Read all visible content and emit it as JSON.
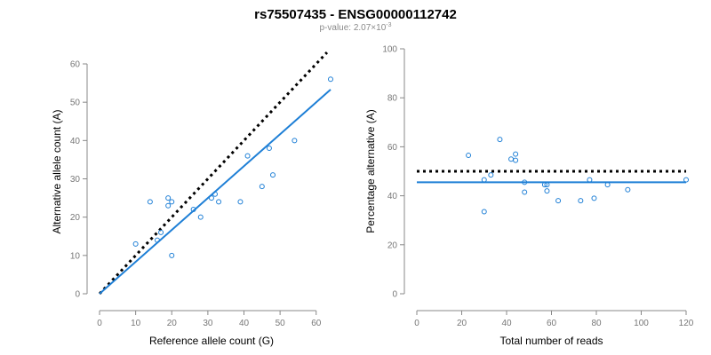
{
  "header": {
    "title": "rs75507435 - ENSG00000112742",
    "subtitle_prefix": "p-value: 2.07×10",
    "subtitle_exp": "-3"
  },
  "colors": {
    "points": "#1e7fd6",
    "fit": "#1e7fd6",
    "reference": "#000000",
    "axis": "#888888"
  },
  "chart_data": [
    {
      "type": "scatter",
      "xlabel": "Reference allele count (G)",
      "ylabel": "Alternative allele count (A)",
      "xlim": [
        0,
        64
      ],
      "ylim": [
        0,
        60
      ],
      "xticks": [
        0,
        10,
        20,
        30,
        40,
        50,
        60
      ],
      "yticks": [
        0,
        10,
        20,
        30,
        40,
        50,
        60
      ],
      "grid": false,
      "points": [
        [
          10,
          13
        ],
        [
          14,
          24
        ],
        [
          16,
          14
        ],
        [
          17,
          16
        ],
        [
          19,
          25
        ],
        [
          19,
          23
        ],
        [
          20,
          24
        ],
        [
          20,
          10
        ],
        [
          26,
          22
        ],
        [
          28,
          20
        ],
        [
          31,
          25
        ],
        [
          32,
          26
        ],
        [
          33,
          24
        ],
        [
          39,
          24
        ],
        [
          41,
          36
        ],
        [
          45,
          28
        ],
        [
          47,
          38
        ],
        [
          48,
          31
        ],
        [
          54,
          40
        ],
        [
          64,
          56
        ]
      ],
      "fit_line": [
        [
          0,
          0
        ],
        [
          64,
          53.3
        ]
      ],
      "reference_line": [
        [
          0,
          0
        ],
        [
          63,
          63
        ]
      ]
    },
    {
      "type": "scatter",
      "xlabel": "Total number of reads",
      "ylabel": "Percentage alternative (A)",
      "xlim": [
        0,
        120
      ],
      "ylim": [
        0,
        100
      ],
      "xticks": [
        0,
        20,
        40,
        60,
        80,
        100,
        120
      ],
      "yticks": [
        0,
        20,
        40,
        60,
        80,
        100
      ],
      "grid": false,
      "points": [
        [
          23,
          56.5
        ],
        [
          30,
          46.5
        ],
        [
          30,
          33.5
        ],
        [
          33,
          48.5
        ],
        [
          37,
          63
        ],
        [
          42,
          55
        ],
        [
          44,
          57
        ],
        [
          44,
          54.5
        ],
        [
          48,
          45.5
        ],
        [
          48,
          41.5
        ],
        [
          57,
          44.5
        ],
        [
          58,
          42
        ],
        [
          58,
          44.5
        ],
        [
          63,
          38
        ],
        [
          73,
          38
        ],
        [
          77,
          46.5
        ],
        [
          79,
          39
        ],
        [
          85,
          44.5
        ],
        [
          94,
          42.5
        ],
        [
          120,
          46.5
        ]
      ],
      "fit_line": [
        [
          0,
          45.5
        ],
        [
          120,
          45.5
        ]
      ],
      "reference_line": [
        [
          0,
          50
        ],
        [
          120,
          50
        ]
      ]
    }
  ]
}
